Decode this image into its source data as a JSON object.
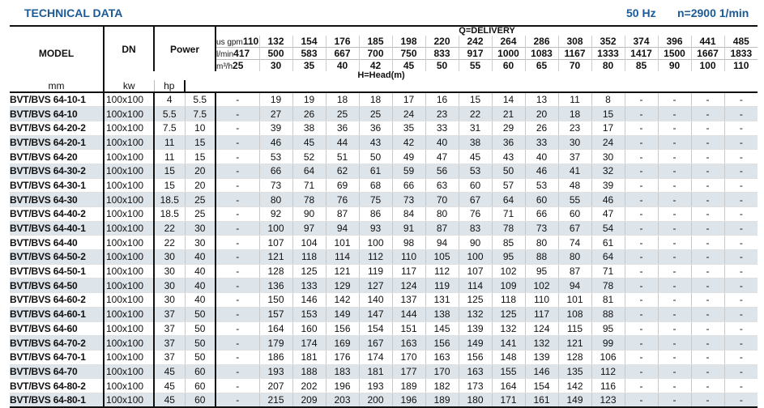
{
  "header": {
    "title": "TECHNICAL DATA",
    "frequency": "50 Hz",
    "speed": "n=2900 1/min"
  },
  "table": {
    "col_model": "MODEL",
    "col_dn": "DN",
    "col_dn_unit": "mm",
    "col_power": "Power",
    "col_kw": "kw",
    "col_hp": "hp",
    "q_caption": "Q=DELIVERY",
    "h_caption": "H=Head(m)",
    "unit_gpm": "us gpm",
    "unit_lmin": "l/min",
    "unit_m3h": "m³/h",
    "gpm": [
      "110",
      "132",
      "154",
      "176",
      "185",
      "198",
      "220",
      "242",
      "264",
      "286",
      "308",
      "352",
      "374",
      "396",
      "441",
      "485"
    ],
    "lmin": [
      "417",
      "500",
      "583",
      "667",
      "700",
      "750",
      "833",
      "917",
      "1000",
      "1083",
      "1167",
      "1333",
      "1417",
      "1500",
      "1667",
      "1833"
    ],
    "m3h": [
      "25",
      "30",
      "35",
      "40",
      "42",
      "45",
      "50",
      "55",
      "60",
      "65",
      "70",
      "80",
      "85",
      "90",
      "100",
      "110"
    ],
    "rows": [
      {
        "model": "BVT/BVS 64-10-1",
        "dn": "100x100",
        "kw": "4",
        "hp": "5.5",
        "head": [
          "-",
          "19",
          "19",
          "18",
          "18",
          "17",
          "16",
          "15",
          "14",
          "13",
          "11",
          "8",
          "-",
          "-",
          "-",
          "-"
        ]
      },
      {
        "model": "BVT/BVS 64-10",
        "dn": "100x100",
        "kw": "5.5",
        "hp": "7.5",
        "head": [
          "-",
          "27",
          "26",
          "25",
          "25",
          "24",
          "23",
          "22",
          "21",
          "20",
          "18",
          "15",
          "-",
          "-",
          "-",
          "-"
        ]
      },
      {
        "model": "BVT/BVS 64-20-2",
        "dn": "100x100",
        "kw": "7.5",
        "hp": "10",
        "head": [
          "-",
          "39",
          "38",
          "36",
          "36",
          "35",
          "33",
          "31",
          "29",
          "26",
          "23",
          "17",
          "-",
          "-",
          "-",
          "-"
        ]
      },
      {
        "model": "BVT/BVS 64-20-1",
        "dn": "100x100",
        "kw": "11",
        "hp": "15",
        "head": [
          "-",
          "46",
          "45",
          "44",
          "43",
          "42",
          "40",
          "38",
          "36",
          "33",
          "30",
          "24",
          "-",
          "-",
          "-",
          "-"
        ]
      },
      {
        "model": "BVT/BVS 64-20",
        "dn": "100x100",
        "kw": "11",
        "hp": "15",
        "head": [
          "-",
          "53",
          "52",
          "51",
          "50",
          "49",
          "47",
          "45",
          "43",
          "40",
          "37",
          "30",
          "-",
          "-",
          "-",
          "-"
        ]
      },
      {
        "model": "BVT/BVS 64-30-2",
        "dn": "100x100",
        "kw": "15",
        "hp": "20",
        "head": [
          "-",
          "66",
          "64",
          "62",
          "61",
          "59",
          "56",
          "53",
          "50",
          "46",
          "41",
          "32",
          "-",
          "-",
          "-",
          "-"
        ]
      },
      {
        "model": "BVT/BVS 64-30-1",
        "dn": "100x100",
        "kw": "15",
        "hp": "20",
        "head": [
          "-",
          "73",
          "71",
          "69",
          "68",
          "66",
          "63",
          "60",
          "57",
          "53",
          "48",
          "39",
          "-",
          "-",
          "-",
          "-"
        ]
      },
      {
        "model": "BVT/BVS 64-30",
        "dn": "100x100",
        "kw": "18.5",
        "hp": "25",
        "head": [
          "-",
          "80",
          "78",
          "76",
          "75",
          "73",
          "70",
          "67",
          "64",
          "60",
          "55",
          "46",
          "-",
          "-",
          "-",
          "-"
        ]
      },
      {
        "model": "BVT/BVS 64-40-2",
        "dn": "100x100",
        "kw": "18.5",
        "hp": "25",
        "head": [
          "-",
          "92",
          "90",
          "87",
          "86",
          "84",
          "80",
          "76",
          "71",
          "66",
          "60",
          "47",
          "-",
          "-",
          "-",
          "-"
        ]
      },
      {
        "model": "BVT/BVS 64-40-1",
        "dn": "100x100",
        "kw": "22",
        "hp": "30",
        "head": [
          "-",
          "100",
          "97",
          "94",
          "93",
          "91",
          "87",
          "83",
          "78",
          "73",
          "67",
          "54",
          "-",
          "-",
          "-",
          "-"
        ]
      },
      {
        "model": "BVT/BVS 64-40",
        "dn": "100x100",
        "kw": "22",
        "hp": "30",
        "head": [
          "-",
          "107",
          "104",
          "101",
          "100",
          "98",
          "94",
          "90",
          "85",
          "80",
          "74",
          "61",
          "-",
          "-",
          "-",
          "-"
        ]
      },
      {
        "model": "BVT/BVS 64-50-2",
        "dn": "100x100",
        "kw": "30",
        "hp": "40",
        "head": [
          "-",
          "121",
          "118",
          "114",
          "112",
          "110",
          "105",
          "100",
          "95",
          "88",
          "80",
          "64",
          "-",
          "-",
          "-",
          "-"
        ]
      },
      {
        "model": "BVT/BVS 64-50-1",
        "dn": "100x100",
        "kw": "30",
        "hp": "40",
        "head": [
          "-",
          "128",
          "125",
          "121",
          "119",
          "117",
          "112",
          "107",
          "102",
          "95",
          "87",
          "71",
          "-",
          "-",
          "-",
          "-"
        ]
      },
      {
        "model": "BVT/BVS 64-50",
        "dn": "100x100",
        "kw": "30",
        "hp": "40",
        "head": [
          "-",
          "136",
          "133",
          "129",
          "127",
          "124",
          "119",
          "114",
          "109",
          "102",
          "94",
          "78",
          "-",
          "-",
          "-",
          "-"
        ]
      },
      {
        "model": "BVT/BVS 64-60-2",
        "dn": "100x100",
        "kw": "30",
        "hp": "40",
        "head": [
          "-",
          "150",
          "146",
          "142",
          "140",
          "137",
          "131",
          "125",
          "118",
          "110",
          "101",
          "81",
          "-",
          "-",
          "-",
          "-"
        ]
      },
      {
        "model": "BVT/BVS 64-60-1",
        "dn": "100x100",
        "kw": "37",
        "hp": "50",
        "head": [
          "-",
          "157",
          "153",
          "149",
          "147",
          "144",
          "138",
          "132",
          "125",
          "117",
          "108",
          "88",
          "-",
          "-",
          "-",
          "-"
        ]
      },
      {
        "model": "BVT/BVS 64-60",
        "dn": "100x100",
        "kw": "37",
        "hp": "50",
        "head": [
          "-",
          "164",
          "160",
          "156",
          "154",
          "151",
          "145",
          "139",
          "132",
          "124",
          "115",
          "95",
          "-",
          "-",
          "-",
          "-"
        ]
      },
      {
        "model": "BVT/BVS 64-70-2",
        "dn": "100x100",
        "kw": "37",
        "hp": "50",
        "head": [
          "-",
          "179",
          "174",
          "169",
          "167",
          "163",
          "156",
          "149",
          "141",
          "132",
          "121",
          "99",
          "-",
          "-",
          "-",
          "-"
        ]
      },
      {
        "model": "BVT/BVS 64-70-1",
        "dn": "100x100",
        "kw": "37",
        "hp": "50",
        "head": [
          "-",
          "186",
          "181",
          "176",
          "174",
          "170",
          "163",
          "156",
          "148",
          "139",
          "128",
          "106",
          "-",
          "-",
          "-",
          "-"
        ]
      },
      {
        "model": "BVT/BVS 64-70",
        "dn": "100x100",
        "kw": "45",
        "hp": "60",
        "head": [
          "-",
          "193",
          "188",
          "183",
          "181",
          "177",
          "170",
          "163",
          "155",
          "146",
          "135",
          "112",
          "-",
          "-",
          "-",
          "-"
        ]
      },
      {
        "model": "BVT/BVS 64-80-2",
        "dn": "100x100",
        "kw": "45",
        "hp": "60",
        "head": [
          "-",
          "207",
          "202",
          "196",
          "193",
          "189",
          "182",
          "173",
          "164",
          "154",
          "142",
          "116",
          "-",
          "-",
          "-",
          "-"
        ]
      },
      {
        "model": "BVT/BVS 64-80-1",
        "dn": "100x100",
        "kw": "45",
        "hp": "60",
        "head": [
          "-",
          "215",
          "209",
          "203",
          "200",
          "196",
          "189",
          "180",
          "171",
          "161",
          "149",
          "123",
          "-",
          "-",
          "-",
          "-"
        ]
      }
    ]
  },
  "colors": {
    "title": "#1a5a96",
    "stripe": "#dde4ea"
  }
}
